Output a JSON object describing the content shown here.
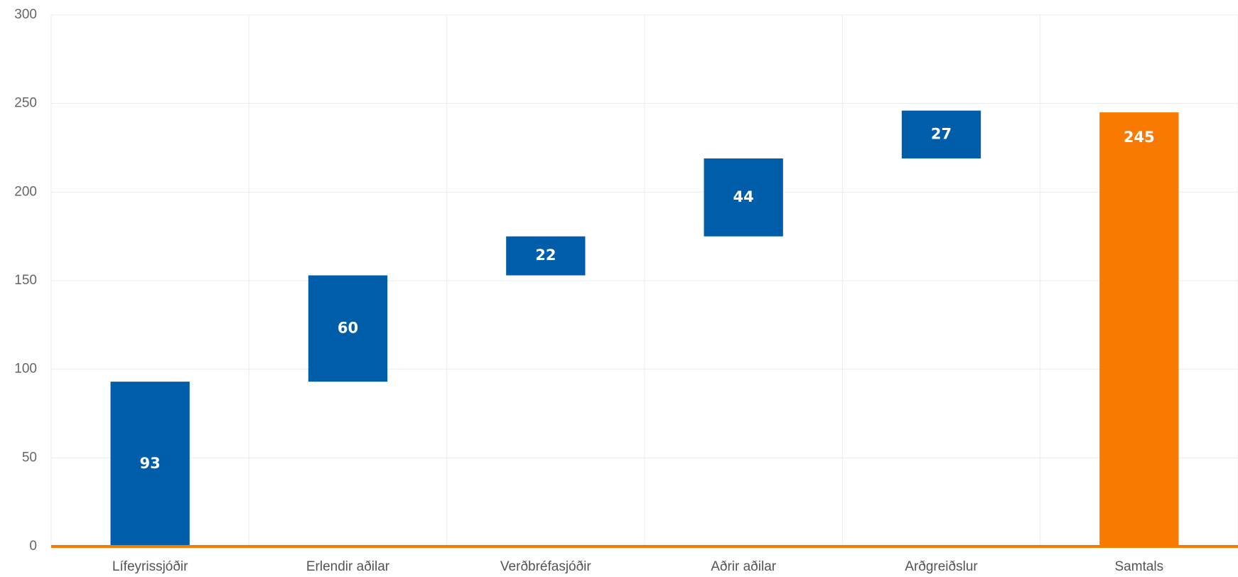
{
  "chart_data": {
    "type": "waterfall",
    "categories": [
      "Lífeyrissjóðir",
      "Erlendir aðilar",
      "Verðbréfasjóðir",
      "Aðrir aðilar",
      "Arðgreiðslur",
      "Samtals"
    ],
    "values": [
      93,
      60,
      22,
      44,
      27,
      245
    ],
    "is_total": [
      false,
      false,
      false,
      false,
      false,
      true
    ],
    "colors": [
      "#005daa",
      "#005daa",
      "#005daa",
      "#005daa",
      "#005daa",
      "#f97a00"
    ],
    "axis_color": "#f97a00",
    "ylim": [
      0,
      300
    ],
    "yticks": [
      0,
      50,
      100,
      150,
      200,
      250,
      300
    ],
    "grid": true
  }
}
